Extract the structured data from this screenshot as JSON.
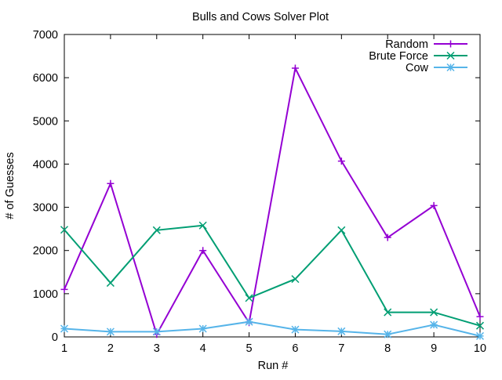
{
  "chart_data": {
    "type": "line",
    "title": "Bulls and Cows Solver Plot",
    "xlabel": "Run #",
    "ylabel": "# of Guesses",
    "x": [
      1,
      2,
      3,
      4,
      5,
      6,
      7,
      8,
      9,
      10
    ],
    "xlim": [
      1,
      10
    ],
    "ylim": [
      0,
      7000
    ],
    "xticks": [
      "1",
      "2",
      "3",
      "4",
      "5",
      "6",
      "7",
      "8",
      "9",
      "10"
    ],
    "yticks": [
      "0",
      "1000",
      "2000",
      "3000",
      "4000",
      "5000",
      "6000",
      "7000"
    ],
    "grid": false,
    "legend_position": "top-right",
    "series": [
      {
        "name": "Random",
        "color": "#9400d3",
        "marker": "plus",
        "values": [
          1100,
          3550,
          60,
          2000,
          330,
          6220,
          4070,
          2300,
          3040,
          470
        ]
      },
      {
        "name": "Brute Force",
        "color": "#009e73",
        "marker": "cross",
        "values": [
          2480,
          1250,
          2470,
          2580,
          900,
          1340,
          2470,
          570,
          570,
          260
        ]
      },
      {
        "name": "Cow",
        "color": "#56b4e9",
        "marker": "star",
        "values": [
          190,
          120,
          120,
          190,
          350,
          170,
          130,
          60,
          280,
          20
        ]
      }
    ]
  }
}
